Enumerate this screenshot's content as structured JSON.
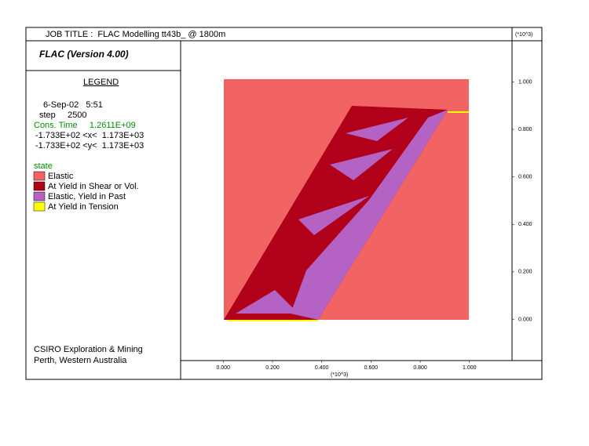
{
  "header": {
    "title": "JOB TITLE :  FLAC Modelling tt43b_ @ 1800m",
    "version": "FLAC (Version 4.00)"
  },
  "legend": {
    "title": "LEGEND",
    "date": "6-Sep-02   5:51",
    "step": "step     2500",
    "time": "Cons. Time     1.2611E+09",
    "x_range": "-1.733E+02 <x<  1.173E+03",
    "y_range": "-1.733E+02 <y<  1.173E+03",
    "state_title": "state",
    "items": [
      {
        "label": "Elastic",
        "color": "#f26464"
      },
      {
        "label": "At Yield in Shear or Vol.",
        "color": "#b0001a"
      },
      {
        "label": "Elastic, Yield in Past",
        "color": "#b462c4"
      },
      {
        "label": "At Yield in Tension",
        "color": "#ffff00"
      }
    ]
  },
  "footer": {
    "line1": "CSIRO Exploration & Mining",
    "line2": "Perth, Western Australia"
  },
  "chart_data": {
    "type": "state-map",
    "x_unit": "(*10^3)",
    "y_unit": "(*10^3)",
    "xlim": [
      -0.1733,
      1.173
    ],
    "ylim": [
      -0.1733,
      1.173
    ],
    "xticks": [
      {
        "value": 0,
        "label": "0.000"
      },
      {
        "value": 0.2,
        "label": "0.200"
      },
      {
        "value": 0.4,
        "label": "0.400"
      },
      {
        "value": 0.6,
        "label": "0.600"
      },
      {
        "value": 0.8,
        "label": "0.800"
      },
      {
        "value": 1,
        "label": "1.000"
      }
    ],
    "yticks": [
      {
        "value": 0,
        "label": "0.000"
      },
      {
        "value": 0.2,
        "label": "0.200"
      },
      {
        "value": 0.4,
        "label": "0.400"
      },
      {
        "value": 0.6,
        "label": "0.600"
      },
      {
        "value": 0.8,
        "label": "0.800"
      },
      {
        "value": 1,
        "label": "1.000"
      }
    ]
  }
}
